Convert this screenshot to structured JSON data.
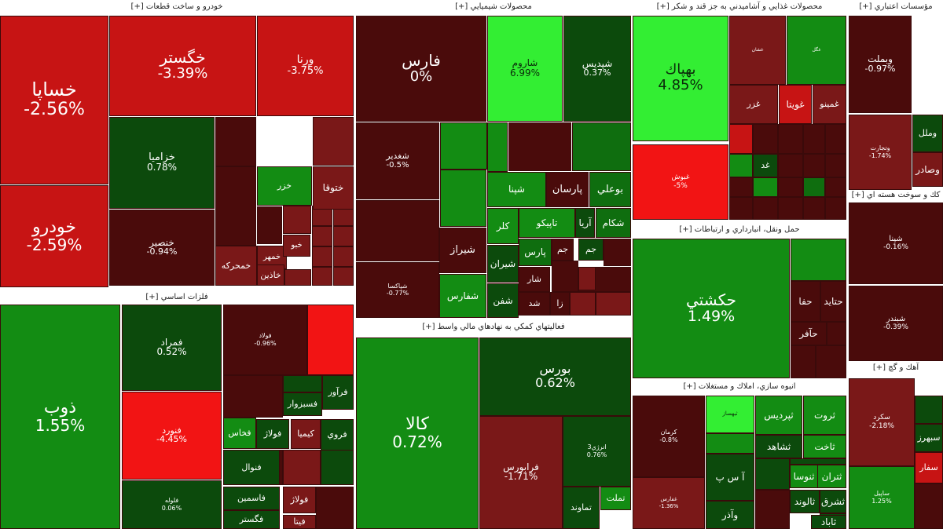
{
  "colors": {
    "dark_red": "#4a0b0b",
    "maroon": "#7a1818",
    "red": "#c71414",
    "bright_red": "#f21414",
    "dark_green": "#0c4a0c",
    "green": "#138c13",
    "mid_green": "#0f6e0f",
    "bright_green": "#33ee33"
  },
  "sectors": [
    {
      "id": "auto",
      "title": "خودرو و ساخت قطعات [+]"
    },
    {
      "id": "chem",
      "title": "محصولات شيميايي [+]"
    },
    {
      "id": "food",
      "title": "محصولات غذايي و آشاميدني به جز قند و شكر [+]"
    },
    {
      "id": "credit",
      "title": "مؤسسات اعتباري [+]"
    },
    {
      "id": "metal",
      "title": "فلزات اساسي [+]"
    },
    {
      "id": "finance",
      "title": "فعاليتهاي كمكي به نهادهاي مالي واسط [+]"
    },
    {
      "id": "transport",
      "title": "حمل ونقل، انبارداري و ارتباطات [+]"
    },
    {
      "id": "nuclear",
      "title": "كك و سوخت هسته اي [+]"
    },
    {
      "id": "build",
      "title": "انبوه سازي، املاك و مستغلات [+]"
    },
    {
      "id": "lime",
      "title": "آهك و گچ [+]"
    }
  ],
  "tiles": [
    {
      "name": "خساپا",
      "pct": "-2.56%",
      "c": "red"
    },
    {
      "name": "خودرو",
      "pct": "-2.59%",
      "c": "red"
    },
    {
      "name": "خگستر",
      "pct": "-3.39%",
      "c": "red"
    },
    {
      "name": "ورنا",
      "pct": "-3.75%",
      "c": "red"
    },
    {
      "name": "خزاميا",
      "pct": "0.78%",
      "c": "dark_green"
    },
    {
      "name": "خنصير",
      "pct": "-0.94%",
      "c": "dark_red"
    },
    {
      "name": "خمهر",
      "pct": "",
      "c": "maroon"
    },
    {
      "name": "خبو",
      "pct": "",
      "c": "maroon"
    },
    {
      "name": "خمحركه",
      "pct": "",
      "c": "maroon"
    },
    {
      "name": "خاذين",
      "pct": "",
      "c": "maroon"
    },
    {
      "name": "خزر",
      "pct": "",
      "c": "green"
    },
    {
      "name": "ختوقا",
      "pct": "",
      "c": "maroon"
    },
    {
      "name": "فارس",
      "pct": "0%",
      "c": "dark_red"
    },
    {
      "name": "شاروم",
      "pct": "6.99%",
      "c": "bright_green"
    },
    {
      "name": "شپديس",
      "pct": "0.37%",
      "c": "dark_green"
    },
    {
      "name": "شغدير",
      "pct": "-0.5%",
      "c": "dark_red"
    },
    {
      "name": "شپنا",
      "pct": "",
      "c": "green"
    },
    {
      "name": "پارسان",
      "pct": "",
      "c": "dark_red"
    },
    {
      "name": "بوعلي",
      "pct": "",
      "c": "mid_green"
    },
    {
      "name": "كلر",
      "pct": "",
      "c": "green"
    },
    {
      "name": "تاپيكو",
      "pct": "",
      "c": "green"
    },
    {
      "name": "آريا",
      "pct": "",
      "c": "dark_green"
    },
    {
      "name": "شكام",
      "pct": "",
      "c": "mid_green"
    },
    {
      "name": "شيراز",
      "pct": "",
      "c": "dark_red"
    },
    {
      "name": "پارس",
      "pct": "",
      "c": "mid_green"
    },
    {
      "name": "جم",
      "pct": "",
      "c": "dark_red"
    },
    {
      "name": "شيران",
      "pct": "",
      "c": "dark_green"
    },
    {
      "name": "شفارس",
      "pct": "",
      "c": "green"
    },
    {
      "name": "شفن",
      "pct": "",
      "c": "dark_green"
    },
    {
      "name": "شپاكسا",
      "pct": "-0.77%",
      "c": "dark_red"
    },
    {
      "name": "شار",
      "pct": "",
      "c": "dark_red"
    },
    {
      "name": "شد",
      "pct": "",
      "c": "dark_red"
    },
    {
      "name": "زا",
      "pct": "",
      "c": "dark_red"
    },
    {
      "name": "جم",
      "pct": "",
      "c": "dark_green"
    },
    {
      "name": "بهپاك",
      "pct": "4.85%",
      "c": "bright_green"
    },
    {
      "name": "غبوش",
      "pct": "-5%",
      "c": "bright_red"
    },
    {
      "name": "غزر",
      "pct": "",
      "c": "maroon"
    },
    {
      "name": "غويتا",
      "pct": "",
      "c": "red"
    },
    {
      "name": "غمينو",
      "pct": "",
      "c": "maroon"
    },
    {
      "name": "غشان",
      "pct": "",
      "c": "maroon"
    },
    {
      "name": "غگل",
      "pct": "",
      "c": "green"
    },
    {
      "name": "غد",
      "pct": "",
      "c": "dark_green"
    },
    {
      "name": "وبملت",
      "pct": "-0.97%",
      "c": "dark_red"
    },
    {
      "name": "وتجارت",
      "pct": "-1.74%",
      "c": "maroon"
    },
    {
      "name": "وملل",
      "pct": "",
      "c": "dark_green"
    },
    {
      "name": "وصادر",
      "pct": "",
      "c": "maroon"
    },
    {
      "name": "ذوب",
      "pct": "1.55%",
      "c": "green"
    },
    {
      "name": "فمراد",
      "pct": "0.52%",
      "c": "dark_green"
    },
    {
      "name": "فنورد",
      "pct": "-4.45%",
      "c": "bright_red"
    },
    {
      "name": "فلوله",
      "pct": "0.06%",
      "c": "dark_green"
    },
    {
      "name": "فولاد",
      "pct": "-0.96%",
      "c": "dark_red"
    },
    {
      "name": "فسبزوار",
      "pct": "",
      "c": "dark_green"
    },
    {
      "name": "فرآور",
      "pct": "",
      "c": "dark_green"
    },
    {
      "name": "فخاس",
      "pct": "",
      "c": "green"
    },
    {
      "name": "فولاژ",
      "pct": "",
      "c": "dark_green"
    },
    {
      "name": "كيميا",
      "pct": "",
      "c": "maroon"
    },
    {
      "name": "فروي",
      "pct": "",
      "c": "dark_green"
    },
    {
      "name": "فنوال",
      "pct": "",
      "c": "dark_green"
    },
    {
      "name": "فاسمين",
      "pct": "",
      "c": "dark_green"
    },
    {
      "name": "فگستر",
      "pct": "",
      "c": "dark_green"
    },
    {
      "name": "فولاژ",
      "pct": "",
      "c": "maroon"
    },
    {
      "name": "فيتا",
      "pct": "",
      "c": "maroon"
    },
    {
      "name": "كالا",
      "pct": "0.72%",
      "c": "green"
    },
    {
      "name": "بورس",
      "pct": "0.62%",
      "c": "dark_green"
    },
    {
      "name": "فرابورس",
      "pct": "-1.71%",
      "c": "maroon"
    },
    {
      "name": "انرژي3",
      "pct": "0.76%",
      "c": "dark_green"
    },
    {
      "name": "تملت",
      "pct": "",
      "c": "green"
    },
    {
      "name": "تماوند",
      "pct": "",
      "c": "dark_green"
    },
    {
      "name": "حكشتي",
      "pct": "1.49%",
      "c": "green"
    },
    {
      "name": "حفا",
      "pct": "",
      "c": "dark_red"
    },
    {
      "name": "حتايد",
      "pct": "",
      "c": "dark_red"
    },
    {
      "name": "حآفر",
      "pct": "",
      "c": "dark_red"
    },
    {
      "name": "شپنا",
      "pct": "-0.16%",
      "c": "dark_red"
    },
    {
      "name": "شبندر",
      "pct": "-0.39%",
      "c": "dark_red"
    },
    {
      "name": "كرمان",
      "pct": "-0.8%",
      "c": "dark_red"
    },
    {
      "name": "ثبهساز",
      "pct": "",
      "c": "bright_green"
    },
    {
      "name": "ثپرديس",
      "pct": "",
      "c": "green"
    },
    {
      "name": "ثروت",
      "pct": "",
      "c": "green"
    },
    {
      "name": "ثشاهد",
      "pct": "",
      "c": "dark_green"
    },
    {
      "name": "ثاخت",
      "pct": "",
      "c": "green"
    },
    {
      "name": "آ س پ",
      "pct": "",
      "c": "dark_green"
    },
    {
      "name": "ثنوسا",
      "pct": "",
      "c": "green"
    },
    {
      "name": "ثتران",
      "pct": "",
      "c": "green"
    },
    {
      "name": "ثالوند",
      "pct": "",
      "c": "dark_green"
    },
    {
      "name": "ثشرق",
      "pct": "",
      "c": "dark_green"
    },
    {
      "name": "وآذر",
      "pct": "",
      "c": "dark_green"
    },
    {
      "name": "غفارس",
      "pct": "-1.36%",
      "c": "maroon"
    },
    {
      "name": "ثاباد",
      "pct": "",
      "c": "dark_green"
    },
    {
      "name": "سكرد",
      "pct": "-2.18%",
      "c": "maroon"
    },
    {
      "name": "ساپيل",
      "pct": "1.25%",
      "c": "green"
    },
    {
      "name": "سبهرز",
      "pct": "",
      "c": "dark_green"
    },
    {
      "name": "سفار",
      "pct": "",
      "c": "red"
    }
  ]
}
